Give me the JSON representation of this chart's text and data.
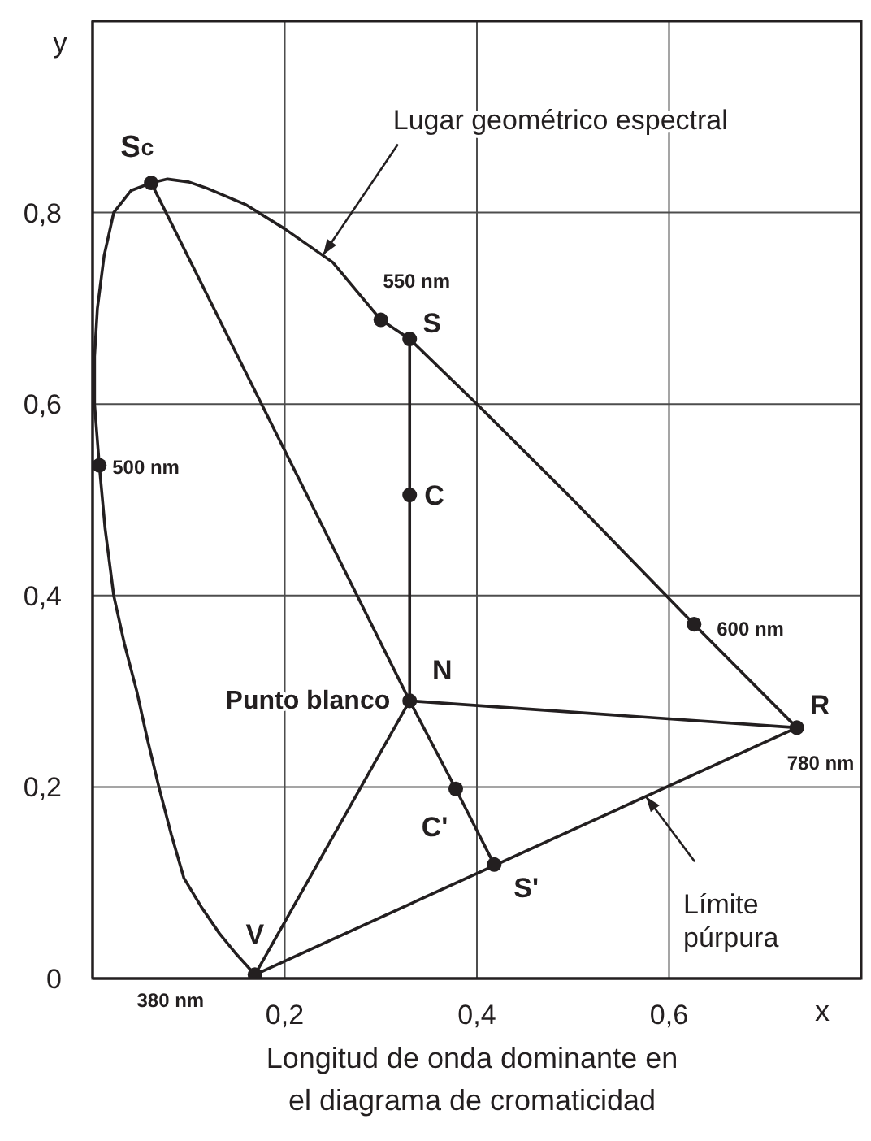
{
  "chart_data": {
    "type": "line",
    "xlabel": "x",
    "ylabel": "y",
    "xlim": [
      0,
      0.8
    ],
    "ylim": [
      0,
      1
    ],
    "xticks": [
      {
        "value": 0.2,
        "label": "0,2"
      },
      {
        "value": 0.4,
        "label": "0,4"
      },
      {
        "value": 0.6,
        "label": "0,6"
      }
    ],
    "yticks": [
      {
        "value": 0,
        "label": "0"
      },
      {
        "value": 0.2,
        "label": "0,2"
      },
      {
        "value": 0.4,
        "label": "0,4"
      },
      {
        "value": 0.6,
        "label": "0,6"
      },
      {
        "value": 0.8,
        "label": "0,8"
      }
    ],
    "grid": true,
    "marker": "none",
    "line_style": "solid",
    "series": [
      {
        "type": "line",
        "color": "#231f20",
        "x": [
          0.169,
          0.15,
          0.132,
          0.113,
          0.095,
          0.082,
          0.069,
          0.057,
          0.046,
          0.033,
          0.022,
          0.013,
          0.007,
          0.002,
          0.002,
          0.005,
          0.012,
          0.022,
          0.04,
          0.061,
          0.078,
          0.1,
          0.12,
          0.16,
          0.2,
          0.25,
          0.3,
          0.33,
          0.4,
          0.5,
          0.626,
          0.733
        ],
        "values": [
          0.004,
          0.025,
          0.047,
          0.075,
          0.105,
          0.15,
          0.2,
          0.25,
          0.3,
          0.35,
          0.4,
          0.47,
          0.536,
          0.6,
          0.65,
          0.7,
          0.755,
          0.8,
          0.823,
          0.831,
          0.835,
          0.832,
          0.825,
          0.808,
          0.783,
          0.748,
          0.688,
          0.668,
          0.6,
          0.5,
          0.37,
          0.262
        ]
      },
      {
        "type": "line",
        "color": "#231f20",
        "x": [
          0.169,
          0.733
        ],
        "values": [
          0.004,
          0.262
        ]
      },
      {
        "type": "line",
        "color": "#231f20",
        "x": [
          0.061,
          0.33,
          0.378,
          0.418
        ],
        "values": [
          0.831,
          0.29,
          0.198,
          0.119
        ]
      },
      {
        "type": "line",
        "color": "#231f20",
        "x": [
          0.169,
          0.33,
          0.733
        ],
        "values": [
          0.004,
          0.29,
          0.262
        ]
      },
      {
        "type": "line",
        "color": "#231f20",
        "x": [
          0.33,
          0.33,
          0.33
        ],
        "values": [
          0.668,
          0.505,
          0.29
        ]
      },
      {
        "type": "scatter",
        "marker": "circle",
        "color": "#231f20",
        "x": [
          0.061,
          0.3,
          0.33,
          0.007,
          0.33,
          0.626,
          0.33,
          0.733,
          0.378,
          0.418,
          0.169
        ],
        "values": [
          0.831,
          0.688,
          0.668,
          0.536,
          0.505,
          0.37,
          0.29,
          0.262,
          0.198,
          0.119,
          0.004
        ]
      }
    ],
    "annotations": [
      {
        "text": "Lugar geométrico espectral",
        "x": 0.24,
        "y": 0.756
      },
      {
        "text": "S$_{c}$",
        "x": 0.061,
        "y": 0.831
      },
      {
        "text": "550 nm",
        "x": 0.3,
        "y": 0.688
      },
      {
        "text": "S",
        "x": 0.33,
        "y": 0.668
      },
      {
        "text": "500 nm",
        "x": 0.007,
        "y": 0.536
      },
      {
        "text": "C",
        "x": 0.33,
        "y": 0.505
      },
      {
        "text": "600 nm",
        "x": 0.626,
        "y": 0.37
      },
      {
        "text": "N",
        "x": 0.33,
        "y": 0.29
      },
      {
        "text": "Punto blanco",
        "x": 0.33,
        "y": 0.29
      },
      {
        "text": "R",
        "x": 0.733,
        "y": 0.262
      },
      {
        "text": "780 nm",
        "x": 0.733,
        "y": 0.262
      },
      {
        "text": "C'",
        "x": 0.378,
        "y": 0.198
      },
      {
        "text": "S'",
        "x": 0.418,
        "y": 0.119
      },
      {
        "text": "V",
        "x": 0.169,
        "y": 0.004
      },
      {
        "text": "380 nm",
        "x": 0.169,
        "y": 0.004
      },
      {
        "text": "Límite púrpura",
        "x": 0.576,
        "y": 0.19
      },
      "Longitud de onda dominante en el diagrama de cromaticidad"
    ]
  }
}
